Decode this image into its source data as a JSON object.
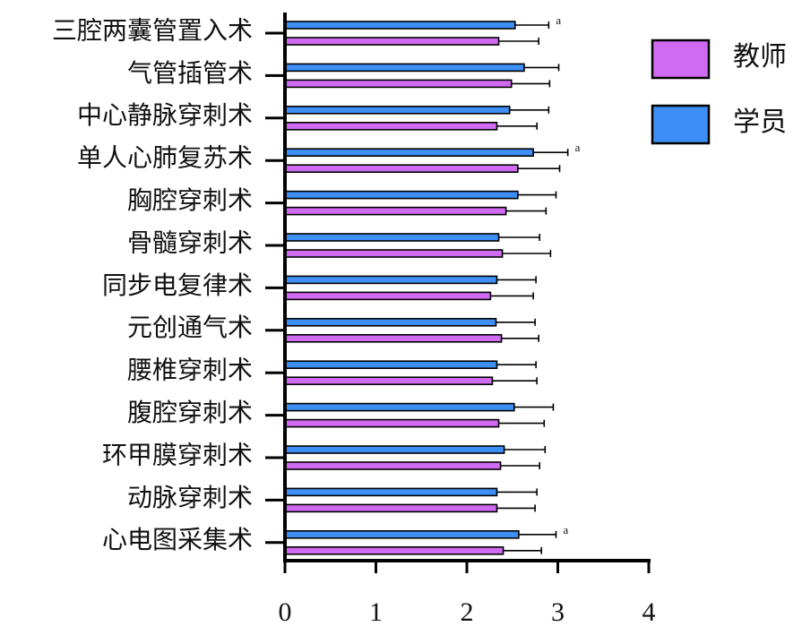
{
  "chart_data": {
    "type": "bar",
    "orientation": "horizontal",
    "categories": [
      "三腔两囊管置入术",
      "气管插管术",
      "中心静脉穿刺术",
      "单人心肺复苏术",
      "胸腔穿刺术",
      "骨髓穿刺术",
      "同步电复律术",
      "元创通气术",
      "腰椎穿刺术",
      "腹腔穿刺术",
      "环甲膜穿刺术",
      "动脉穿刺术",
      "心电图采集术"
    ],
    "series": [
      {
        "name": "学员",
        "color": "#3d8ef5",
        "values": [
          2.53,
          2.63,
          2.47,
          2.73,
          2.56,
          2.35,
          2.33,
          2.32,
          2.33,
          2.52,
          2.41,
          2.33,
          2.57
        ],
        "errors": [
          0.37,
          0.38,
          0.43,
          0.38,
          0.42,
          0.45,
          0.43,
          0.43,
          0.43,
          0.43,
          0.45,
          0.44,
          0.41
        ],
        "annotations": [
          "a",
          null,
          null,
          "a",
          null,
          null,
          null,
          null,
          null,
          null,
          null,
          null,
          "a"
        ]
      },
      {
        "name": "教师",
        "color": "#d06af0",
        "values": [
          2.35,
          2.49,
          2.33,
          2.56,
          2.43,
          2.39,
          2.26,
          2.38,
          2.28,
          2.35,
          2.37,
          2.33,
          2.4
        ],
        "errors": [
          0.44,
          0.42,
          0.44,
          0.46,
          0.44,
          0.53,
          0.47,
          0.41,
          0.49,
          0.5,
          0.43,
          0.42,
          0.42
        ]
      }
    ],
    "xlim": [
      0,
      4
    ],
    "xticks": [
      0,
      1,
      2,
      3,
      4
    ],
    "legend": "upper right"
  }
}
